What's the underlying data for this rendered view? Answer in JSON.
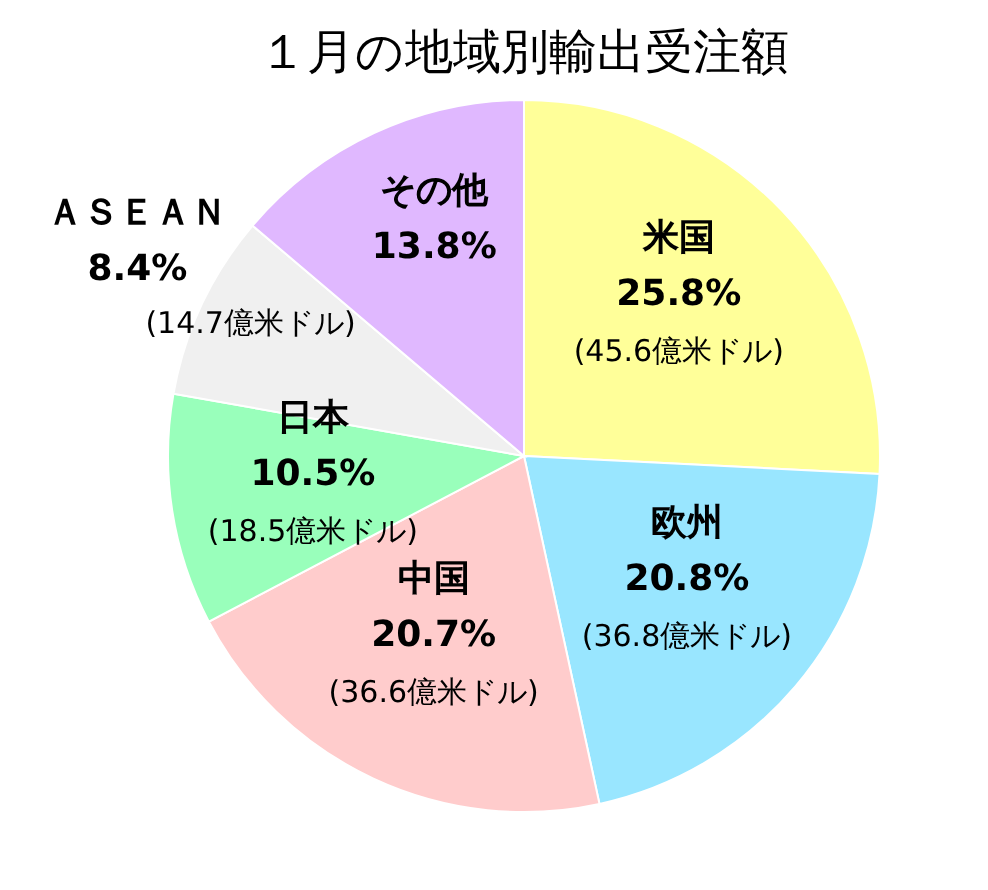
{
  "chart_data": {
    "type": "pie",
    "title": "１月の地域別輸出受注額",
    "categories": [
      "米国",
      "欧州",
      "中国",
      "日本",
      "ＡＳＥＡＮ",
      "その他"
    ],
    "values": [
      25.8,
      20.8,
      20.7,
      10.5,
      8.4,
      13.8
    ],
    "colors": [
      "#ffff99",
      "#99e6ff",
      "#ffcccc",
      "#99ffbb",
      "#f0f0f0",
      "#e0b8ff"
    ],
    "value_labels": [
      "25.8%",
      "20.8%",
      "20.7%",
      "10.5%",
      "8.4%",
      "13.8%"
    ],
    "annotations": [
      {
        "text": "(45.6億米ドル)",
        "x": "米国"
      },
      {
        "text": "(36.8億米ドル)",
        "x": "欧州"
      },
      {
        "text": "(36.6億米ドル)",
        "x": "中国"
      },
      {
        "text": "(18.5億米ドル)",
        "x": "日本"
      },
      {
        "text": "(14.7億米ドル)",
        "x": "ＡＳＥＡＮ"
      }
    ]
  }
}
